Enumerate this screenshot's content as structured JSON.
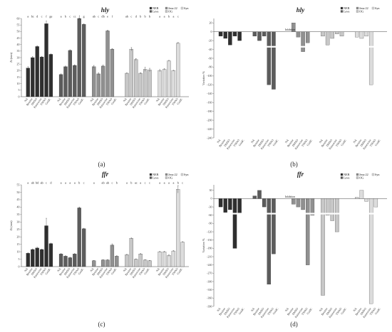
{
  "legend": [
    "NEB",
    "Lava",
    "Jena 22",
    "OG",
    "Syn"
  ],
  "colors": [
    "#2b2b2b",
    "#5a5a5a",
    "#8f8f8f",
    "#cdcdcd",
    "#b8b8b8"
  ],
  "groups": [
    "NEB",
    "Lava",
    "Jena 22",
    "OG",
    "Syn"
  ],
  "treatments": [
    "NA",
    "Betaine",
    "DMSO",
    "Putrescine",
    "TMAO",
    "GoldC"
  ],
  "inhibition_label": "Inhibition",
  "chart_data": [
    {
      "panel": "a",
      "caption": "(a)",
      "type": "bar",
      "title": "hly",
      "ylabel": "Zi (mm)",
      "ylim": [
        0,
        60
      ],
      "values": [
        [
          22,
          30,
          38.5,
          30.5,
          56,
          32.5
        ],
        [
          17,
          23,
          35.5,
          24,
          60,
          55.5
        ],
        [
          23,
          17.5,
          23.5,
          50.5,
          36.5,
          null
        ],
        [
          18,
          36.5,
          28.5,
          18,
          21,
          20.5
        ],
        [
          20,
          21,
          27.5,
          20,
          41,
          null
        ]
      ],
      "errors": [
        [
          1,
          0.8,
          0.5,
          0.5,
          2,
          0.3
        ],
        [
          0.5,
          0.5,
          0.5,
          0.5,
          0.4,
          0.4
        ],
        [
          1,
          0.8,
          0.8,
          0.6,
          0.4,
          0
        ],
        [
          0.3,
          1.2,
          0.8,
          0.4,
          1.5,
          1.3
        ],
        [
          0.8,
          0.5,
          0.4,
          0.3,
          0.6,
          0
        ]
      ],
      "letters": [
        [
          "a",
          "bc",
          "d",
          "c",
          "f",
          "ge"
        ],
        [
          "a",
          "b",
          "c",
          "cc",
          "f",
          "g"
        ],
        [
          "ab",
          "c",
          "db",
          "e",
          "f",
          ""
        ],
        [
          "ab",
          "c",
          "d",
          "b",
          "b",
          "b"
        ],
        [
          "a",
          "a",
          "b",
          "a",
          "c",
          ""
        ]
      ]
    },
    {
      "panel": "b",
      "caption": "(b)",
      "type": "bar",
      "title": "hly",
      "ylabel": "Variation %",
      "ylim": [
        -240,
        30
      ],
      "values": [
        [
          -10,
          -15,
          -30,
          -10,
          -20,
          null
        ],
        [
          -10,
          -20,
          -10,
          -120,
          -130,
          null
        ],
        [
          null,
          20,
          -12,
          -45,
          -25,
          null
        ],
        [
          -10,
          -30,
          -15,
          -5,
          -10,
          null
        ],
        [
          -12,
          -15,
          -10,
          -120,
          null,
          null
        ]
      ],
      "letters": []
    },
    {
      "panel": "c",
      "caption": "(c)",
      "type": "bar",
      "title": "ffr",
      "ylabel": "Zi (mm)",
      "ylim": [
        0,
        55
      ],
      "values": [
        [
          9,
          11.5,
          12.5,
          11.5,
          27.5,
          15.5
        ],
        [
          8.5,
          7,
          6,
          8.5,
          39.5,
          25.5
        ],
        [
          4,
          0,
          4.5,
          4.5,
          14.5,
          7
        ],
        [
          8,
          19,
          5,
          8.5,
          4.5,
          4
        ],
        [
          10,
          10,
          7.5,
          10.5,
          52,
          16.5
        ]
      ],
      "errors": [
        [
          0.3,
          0.4,
          0.5,
          0.3,
          5,
          0.3
        ],
        [
          0.3,
          0.3,
          0.3,
          0.3,
          0.6,
          0.3
        ],
        [
          0.2,
          0,
          0.2,
          0.2,
          0.8,
          0.3
        ],
        [
          0.3,
          0.3,
          0.2,
          0.3,
          0.2,
          0.2
        ],
        [
          0.3,
          0.3,
          0.6,
          0.3,
          2.5,
          0.3
        ]
      ],
      "letters": [
        [
          "a",
          "ab",
          "bd",
          "ab",
          "c",
          "d"
        ],
        [
          "a",
          "a",
          "a",
          "a",
          "b",
          "c"
        ],
        [
          "a",
          "",
          "ab",
          "ab",
          "c",
          "b"
        ],
        [
          "a",
          "b",
          "ac",
          "a",
          "c",
          "c"
        ],
        [
          "a",
          "a",
          "a",
          "a",
          "b",
          "c"
        ]
      ]
    },
    {
      "panel": "d",
      "caption": "(d)",
      "type": "bar",
      "title": "ffr",
      "ylabel": "Variation %",
      "ylim": [
        -390,
        50
      ],
      "values": [
        [
          -30,
          -50,
          -40,
          -180,
          -55,
          null
        ],
        [
          10,
          30,
          -30,
          -310,
          -200,
          null
        ],
        [
          null,
          -20,
          -30,
          -40,
          -240,
          -60
        ],
        [
          -350,
          -60,
          -80,
          -120,
          null,
          null
        ],
        [
          5,
          30,
          -10,
          -380,
          -30,
          null
        ]
      ],
      "letters": []
    }
  ]
}
